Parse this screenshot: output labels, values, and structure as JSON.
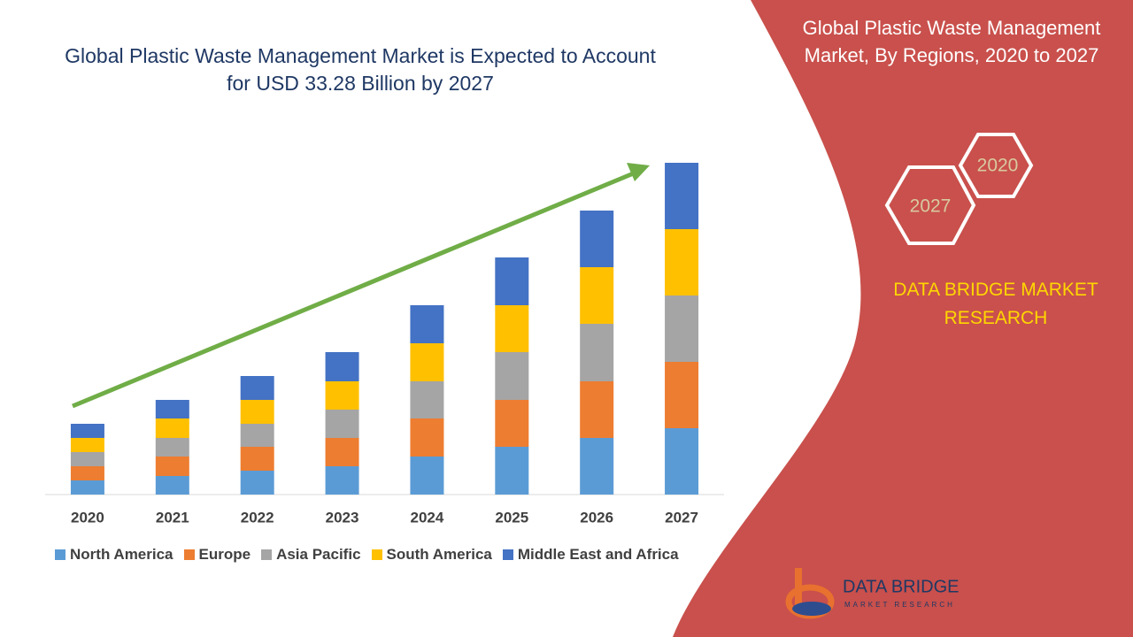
{
  "chart_data": {
    "type": "stacked_bar",
    "title": "Global Plastic Waste Management Market  is Expected to Account for USD 33.28 Billion by 2027",
    "categories": [
      "2020",
      "2021",
      "2022",
      "2023",
      "2024",
      "2025",
      "2026",
      "2027"
    ],
    "series": [
      {
        "name": "North America",
        "color": "#5b9bd5",
        "values": [
          16,
          21,
          27,
          32,
          43,
          54,
          64,
          75
        ]
      },
      {
        "name": "Europe",
        "color": "#ed7d31",
        "values": [
          16,
          22,
          27,
          32,
          43,
          53,
          64,
          75
        ]
      },
      {
        "name": "Asia Pacific",
        "color": "#a5a5a5",
        "values": [
          16,
          21,
          26,
          32,
          42,
          54,
          65,
          75
        ]
      },
      {
        "name": "South America",
        "color": "#ffc000",
        "values": [
          16,
          22,
          27,
          32,
          43,
          53,
          64,
          75
        ]
      },
      {
        "name": "Middle East and Africa",
        "color": "#4472c4",
        "values": [
          16,
          21,
          27,
          33,
          43,
          54,
          64,
          75
        ]
      }
    ],
    "ylim": [
      0,
      400
    ]
  },
  "sidebar": {
    "title": "Global Plastic Waste Management Market, By Regions, 2020 to 2027",
    "hexagons": [
      "2020",
      "2027"
    ],
    "brand": "DATA BRIDGE MARKET RESEARCH",
    "logo_name": "DATA BRIDGE",
    "logo_tagline": "MARKET RESEARCH"
  }
}
